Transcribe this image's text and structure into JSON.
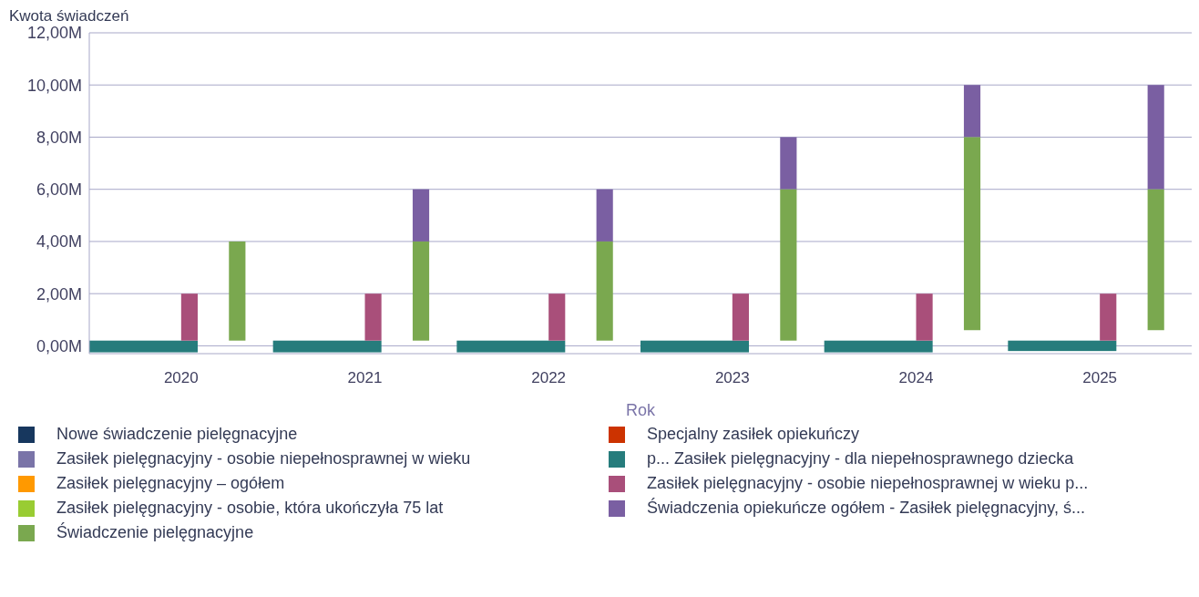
{
  "chart_data": {
    "type": "bar",
    "ylabel": "Kwota świadczeń",
    "xlabel": "Rok",
    "categories": [
      "2020",
      "2021",
      "2022",
      "2023",
      "2024",
      "2025"
    ],
    "ylim": [
      -0.3,
      12
    ],
    "yticks": [
      {
        "value": 0,
        "label": "0,00M"
      },
      {
        "value": 2,
        "label": "2,00M"
      },
      {
        "value": 4,
        "label": "4,00M"
      },
      {
        "value": 6,
        "label": "6,00M"
      },
      {
        "value": 8,
        "label": "8,00M"
      },
      {
        "value": 10,
        "label": "10,00M"
      },
      {
        "value": 12,
        "label": "12,00M"
      }
    ],
    "grid": "y",
    "legend": "bottom",
    "series": [
      {
        "name": "Nowe świadczenie pielęgnacyjne",
        "color": "#17375e",
        "values": [
          null,
          null,
          null,
          null,
          null,
          null
        ]
      },
      {
        "name": "Specjalny zasiłek opiekuńczy",
        "color": "#cc3300",
        "values": [
          null,
          null,
          null,
          null,
          null,
          null
        ]
      },
      {
        "name": "Zasiłek pielęgnacyjny -  osobie niepełnosprawnej w wieku",
        "color": "#7a74a8",
        "values": [
          null,
          null,
          null,
          null,
          null,
          null
        ]
      },
      {
        "name": "p... Zasiłek pielęgnacyjny - dla niepełnosprawnego dziecka",
        "color": "#267c7c",
        "base": [
          -0.25,
          -0.25,
          -0.25,
          -0.25,
          -0.25,
          -0.2
        ],
        "values": [
          0.45,
          0.45,
          0.45,
          0.45,
          0.45,
          0.4
        ]
      },
      {
        "name": "Zasiłek pielęgnacyjny – ogółem",
        "color": "#ff9900",
        "values": [
          null,
          null,
          null,
          null,
          null,
          null
        ]
      },
      {
        "name": "Zasiłek pielęgnacyjny - osobie niepełnosprawnej w wieku p...",
        "color": "#a94f7a",
        "base": [
          0.2,
          0.2,
          0.2,
          0.2,
          0.2,
          0.2
        ],
        "values": [
          1.8,
          1.8,
          1.8,
          1.8,
          1.8,
          1.8
        ]
      },
      {
        "name": "Zasiłek pielęgnacyjny - osobie, która ukończyła 75 lat",
        "color": "#99cc33",
        "values": [
          null,
          null,
          null,
          null,
          null,
          null
        ]
      },
      {
        "name": "Świadczenia opiekuńcze ogółem - Zasiłek pielęgnacyjny, ś...",
        "color": "#7a5fa2",
        "base": [
          null,
          4,
          4,
          6,
          8,
          6
        ],
        "values": [
          null,
          2,
          2,
          2,
          2,
          4
        ]
      },
      {
        "name": "Świadczenie pielęgnacyjne",
        "color": "#7aa84f",
        "base": [
          0.2,
          0.2,
          0.2,
          0.2,
          0.6,
          0.6
        ],
        "values": [
          3.8,
          3.8,
          3.8,
          5.8,
          7.4,
          5.4
        ]
      }
    ]
  }
}
